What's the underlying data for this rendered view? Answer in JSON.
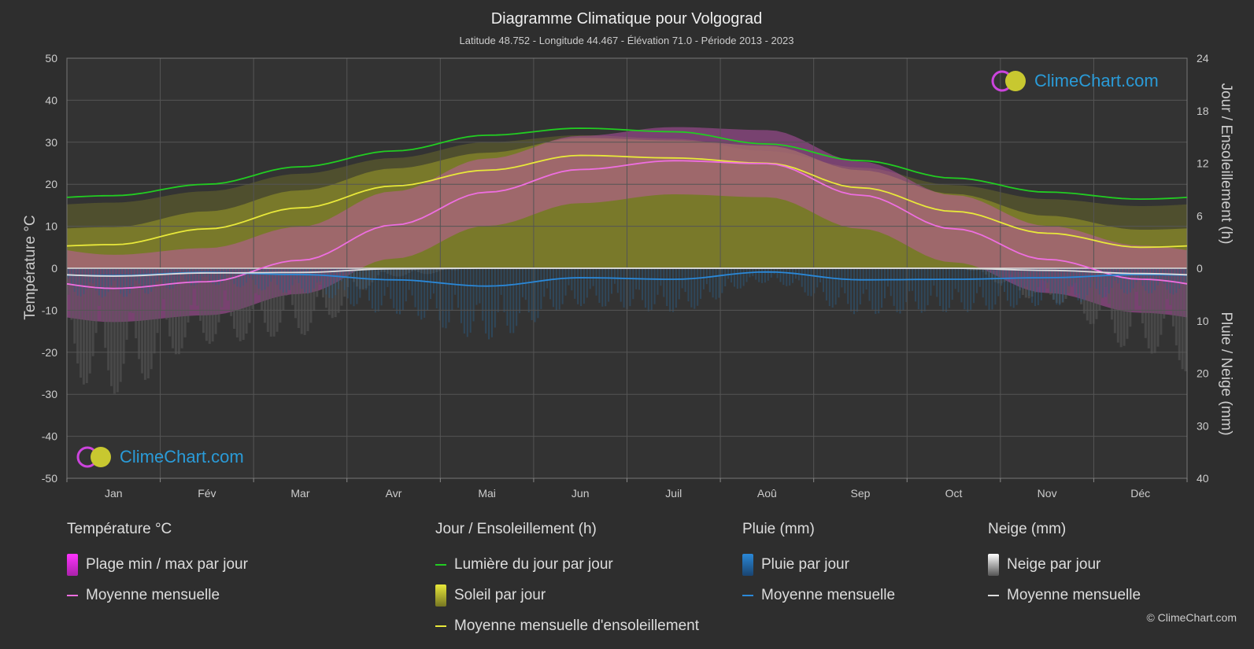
{
  "chart_data": {
    "type": "line",
    "title": "Diagramme Climatique pour Volgograd",
    "subtitle": "Latitude 48.752 - Longitude 44.467 - Élévation 71.0 - Période 2013 - 2023",
    "categories": [
      "Jan",
      "Fév",
      "Mar",
      "Avr",
      "Mai",
      "Jun",
      "Juil",
      "Aoû",
      "Sep",
      "Oct",
      "Nov",
      "Déc"
    ],
    "y_left": {
      "label": "Température °C",
      "range": [
        -50,
        50
      ],
      "ticks": [
        "50",
        "40",
        "30",
        "20",
        "10",
        "0",
        "-10",
        "-20",
        "-30",
        "-40",
        "-50"
      ]
    },
    "y_right_top": {
      "label": "Jour / Ensoleillement (h)",
      "range": [
        0,
        24
      ],
      "ticks": [
        "24",
        "18",
        "12",
        "6",
        "0"
      ]
    },
    "y_right_bottom": {
      "label": "Pluie / Neige (mm)",
      "range": [
        0,
        40
      ],
      "ticks": [
        "10",
        "20",
        "30",
        "40"
      ]
    },
    "series": [
      {
        "name": "Lumière du jour par jour",
        "axis": "hours",
        "color": "#22cc22",
        "values": [
          8.3,
          9.6,
          11.6,
          13.4,
          15.2,
          16.0,
          15.6,
          14.2,
          12.3,
          10.3,
          8.7,
          7.9
        ]
      },
      {
        "name": "Moyenne mensuelle d'ensoleillement",
        "axis": "hours",
        "color": "#e8e83a",
        "values": [
          2.7,
          4.5,
          6.9,
          9.4,
          11.2,
          12.9,
          12.6,
          12.0,
          9.2,
          6.5,
          4.0,
          2.4
        ]
      },
      {
        "name": "Moyenne mensuelle",
        "group": "Température °C",
        "axis": "temp",
        "color": "#ee6ee0",
        "values": [
          -4.8,
          -3.2,
          1.9,
          10.3,
          18.1,
          23.5,
          25.6,
          24.9,
          17.4,
          9.4,
          2.1,
          -2.6
        ]
      },
      {
        "name": "Moyenne mensuelle",
        "group": "Pluie (mm)",
        "axis": "precip",
        "color": "#2a88d8",
        "values": [
          1.4,
          0.8,
          1.2,
          2.2,
          3.4,
          1.8,
          2.1,
          0.7,
          2.2,
          2.1,
          1.8,
          1.2
        ]
      },
      {
        "name": "Moyenne mensuelle",
        "group": "Neige (mm)",
        "axis": "precip",
        "color": "#dddddd",
        "values": [
          1.5,
          0.9,
          0.8,
          0.1,
          0.0,
          0.0,
          0.0,
          0.0,
          0.0,
          0.0,
          0.4,
          1.0
        ]
      }
    ],
    "grid": true
  },
  "legend": {
    "temp": {
      "heading": "Température °C",
      "items": [
        "Plage min / max par jour",
        "Moyenne mensuelle"
      ]
    },
    "sun": {
      "heading": "Jour / Ensoleillement (h)",
      "items": [
        "Lumière du jour par jour",
        "Soleil par jour",
        "Moyenne mensuelle d'ensoleillement"
      ]
    },
    "rain": {
      "heading": "Pluie (mm)",
      "items": [
        "Pluie par jour",
        "Moyenne mensuelle"
      ]
    },
    "snow": {
      "heading": "Neige (mm)",
      "items": [
        "Neige par jour",
        "Moyenne mensuelle"
      ]
    }
  },
  "logo": "ClimeChart.com",
  "copyright": "© ClimeChart.com",
  "colors": {
    "background": "#2e2e2e",
    "daylight": "#22cc22",
    "sunshine": "#e8e83a",
    "temperature": "#ee6ee0",
    "rain": "#2a88d8",
    "snow": "#dddddd"
  }
}
